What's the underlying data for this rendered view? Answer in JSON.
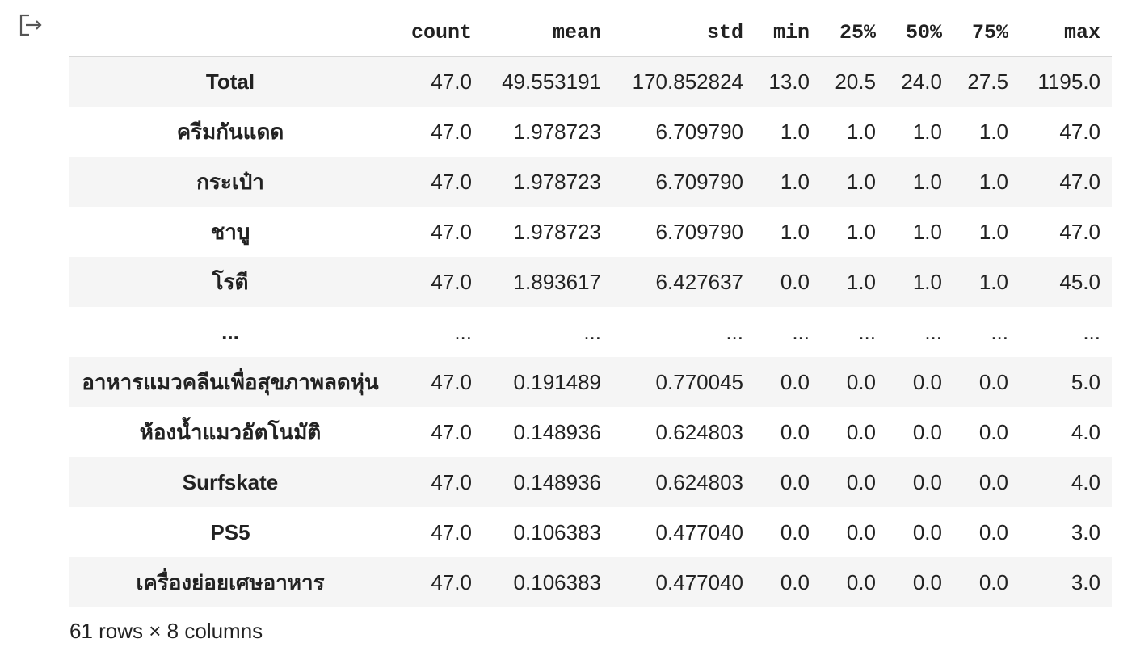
{
  "output_icon": "output-arrow-icon",
  "table": {
    "columns": [
      "",
      "count",
      "mean",
      "std",
      "min",
      "25%",
      "50%",
      "75%",
      "max"
    ],
    "rows": [
      {
        "index": "Total",
        "cells": [
          "47.0",
          "49.553191",
          "170.852824",
          "13.0",
          "20.5",
          "24.0",
          "27.5",
          "1195.0"
        ]
      },
      {
        "index": "ครีมกันแดด",
        "cells": [
          "47.0",
          "1.978723",
          "6.709790",
          "1.0",
          "1.0",
          "1.0",
          "1.0",
          "47.0"
        ]
      },
      {
        "index": "กระเป๋า",
        "cells": [
          "47.0",
          "1.978723",
          "6.709790",
          "1.0",
          "1.0",
          "1.0",
          "1.0",
          "47.0"
        ]
      },
      {
        "index": "ชาบู",
        "cells": [
          "47.0",
          "1.978723",
          "6.709790",
          "1.0",
          "1.0",
          "1.0",
          "1.0",
          "47.0"
        ]
      },
      {
        "index": "โรตี",
        "cells": [
          "47.0",
          "1.893617",
          "6.427637",
          "0.0",
          "1.0",
          "1.0",
          "1.0",
          "45.0"
        ]
      },
      {
        "index": "...",
        "cells": [
          "...",
          "...",
          "...",
          "...",
          "...",
          "...",
          "...",
          "..."
        ]
      },
      {
        "index": "อาหารแมวคลีนเพื่อสุขภาพลดหุ่น",
        "cells": [
          "47.0",
          "0.191489",
          "0.770045",
          "0.0",
          "0.0",
          "0.0",
          "0.0",
          "5.0"
        ]
      },
      {
        "index": "ห้องน้ำแมวอัตโนมัติ",
        "cells": [
          "47.0",
          "0.148936",
          "0.624803",
          "0.0",
          "0.0",
          "0.0",
          "0.0",
          "4.0"
        ]
      },
      {
        "index": "Surfskate",
        "cells": [
          "47.0",
          "0.148936",
          "0.624803",
          "0.0",
          "0.0",
          "0.0",
          "0.0",
          "4.0"
        ]
      },
      {
        "index": "PS5",
        "cells": [
          "47.0",
          "0.106383",
          "0.477040",
          "0.0",
          "0.0",
          "0.0",
          "0.0",
          "3.0"
        ]
      },
      {
        "index": "เครื่องย่อยเศษอาหาร",
        "cells": [
          "47.0",
          "0.106383",
          "0.477040",
          "0.0",
          "0.0",
          "0.0",
          "0.0",
          "3.0"
        ]
      }
    ]
  },
  "footer": {
    "summary": "61 rows × 8 columns"
  }
}
